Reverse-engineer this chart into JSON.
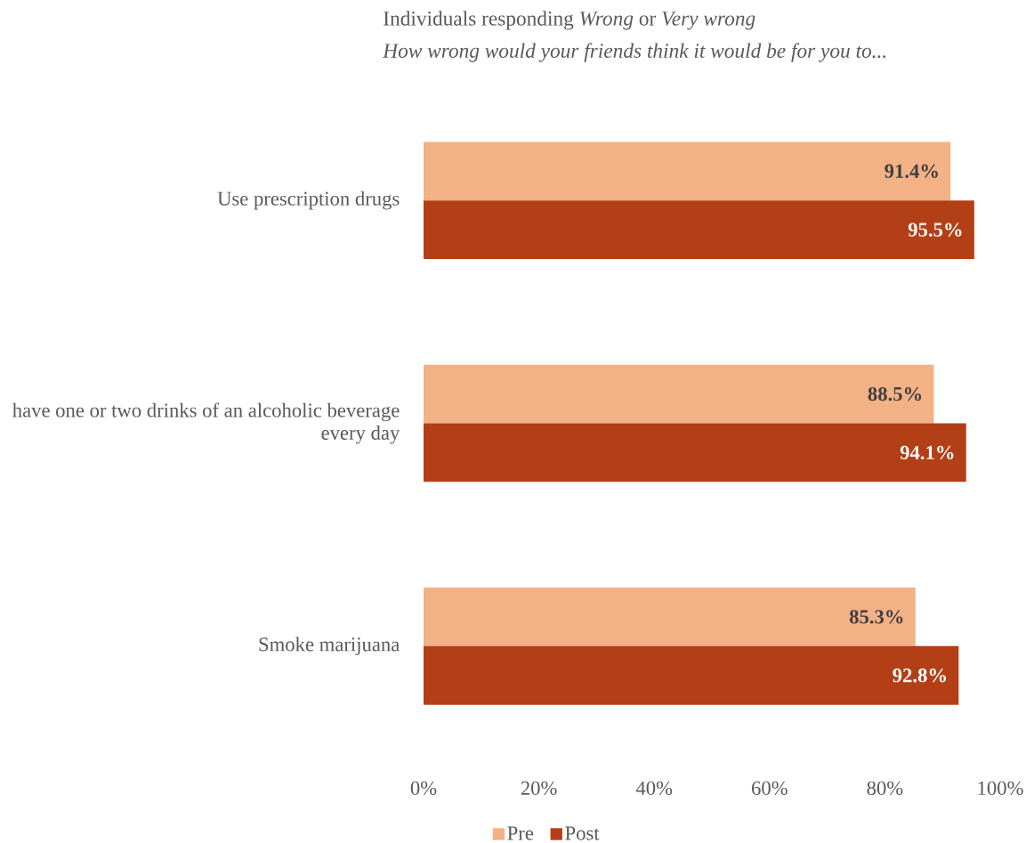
{
  "chart_data": {
    "type": "bar",
    "orientation": "horizontal",
    "title": "Individuals responding *Wrong* or *Very wrong*",
    "subtitle": "How wrong would your friends think it would be for you to...",
    "categories": [
      "Use prescription drugs",
      "have one or two drinks of an alcoholic beverage every day",
      "Smoke marijuana"
    ],
    "series": [
      {
        "name": "Pre",
        "color": "#f3b186",
        "values": [
          91.4,
          88.5,
          85.3
        ],
        "value_labels": [
          "91.4%",
          "88.5%",
          "85.3%"
        ]
      },
      {
        "name": "Post",
        "color": "#b33f16",
        "values": [
          95.5,
          94.1,
          92.8
        ],
        "value_labels": [
          "95.5%",
          "94.1%",
          "92.8%"
        ]
      }
    ],
    "xlim": [
      0,
      100
    ],
    "xticks": [
      {
        "value": 0,
        "label": "0%"
      },
      {
        "value": 20,
        "label": "20%"
      },
      {
        "value": 40,
        "label": "40%"
      },
      {
        "value": 60,
        "label": "60%"
      },
      {
        "value": 80,
        "label": "80%"
      },
      {
        "value": 100,
        "label": "100%"
      }
    ],
    "grid": false,
    "legend": "bottom"
  }
}
